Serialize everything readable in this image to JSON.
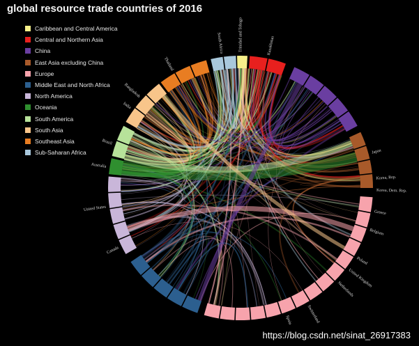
{
  "title": "global resource trade countries of 2016",
  "watermark": "https://blog.csdn.net/sinat_26917383",
  "chart_data": {
    "type": "chord",
    "title": "global resource trade countries of 2016",
    "legend": [
      {
        "name": "Caribbean and Central America",
        "color": "#f6f08a"
      },
      {
        "name": "Central and Northern Asia",
        "color": "#e8201e"
      },
      {
        "name": "China",
        "color": "#6a3ea1"
      },
      {
        "name": "East Asia excluding China",
        "color": "#a85a2a"
      },
      {
        "name": "Europe",
        "color": "#f7a3ac"
      },
      {
        "name": "Middle East and North Africa",
        "color": "#2c5f8f"
      },
      {
        "name": "North America",
        "color": "#c9b6d9"
      },
      {
        "name": "Oceania",
        "color": "#2f8f2f"
      },
      {
        "name": "South America",
        "color": "#b7e29a"
      },
      {
        "name": "South Asia",
        "color": "#f8c58a"
      },
      {
        "name": "Southeast Asia",
        "color": "#e87d22"
      },
      {
        "name": "Sub-Saharan Africa",
        "color": "#a9c8dc"
      }
    ],
    "arcs": [
      {
        "region": "Central and Northern Asia",
        "start": 4,
        "end": 20
      },
      {
        "region": "China",
        "start": 24,
        "end": 62
      },
      {
        "region": "East Asia excluding China",
        "start": 65,
        "end": 90
      },
      {
        "region": "Europe",
        "start": 94,
        "end": 196
      },
      {
        "region": "Middle East and North Africa",
        "start": 199,
        "end": 236
      },
      {
        "region": "North America",
        "start": 240,
        "end": 275
      },
      {
        "region": "Oceania",
        "start": 276,
        "end": 283
      },
      {
        "region": "South America",
        "start": 284,
        "end": 298
      },
      {
        "region": "South Asia",
        "start": 300,
        "end": 322
      },
      {
        "region": "Southeast Asia",
        "start": 323,
        "end": 345
      },
      {
        "region": "Sub-Saharan Africa",
        "start": 347,
        "end": 358
      },
      {
        "region": "Caribbean and Central America",
        "start": 358.5,
        "end": 3
      }
    ],
    "node_labels": [
      {
        "text": "Korea, Rep.",
        "angle": 86
      },
      {
        "text": "Korea, Dem. Rep.",
        "angle": 91
      },
      {
        "text": "Greece",
        "angle": 100
      },
      {
        "text": "Belgium",
        "angle": 108
      },
      {
        "text": "Poland",
        "angle": 121
      },
      {
        "text": "United Kingdom",
        "angle": 127
      },
      {
        "text": "Netherlands",
        "angle": 134
      },
      {
        "text": "Switzerland",
        "angle": 150
      },
      {
        "text": "Spain",
        "angle": 160
      },
      {
        "text": "Canada",
        "angle": 244
      },
      {
        "text": "United States",
        "angle": 262
      },
      {
        "text": "Australia",
        "angle": 279
      },
      {
        "text": "Brazil",
        "angle": 289
      },
      {
        "text": "India",
        "angle": 306
      },
      {
        "text": "Bangladesh",
        "angle": 312
      },
      {
        "text": "Thailand",
        "angle": 330
      },
      {
        "text": "South Africa",
        "angle": 352
      },
      {
        "text": "Trinidad and Tobago",
        "angle": 0
      },
      {
        "text": "Kazakhstan",
        "angle": 12
      },
      {
        "text": "Japan",
        "angle": 75
      }
    ]
  }
}
